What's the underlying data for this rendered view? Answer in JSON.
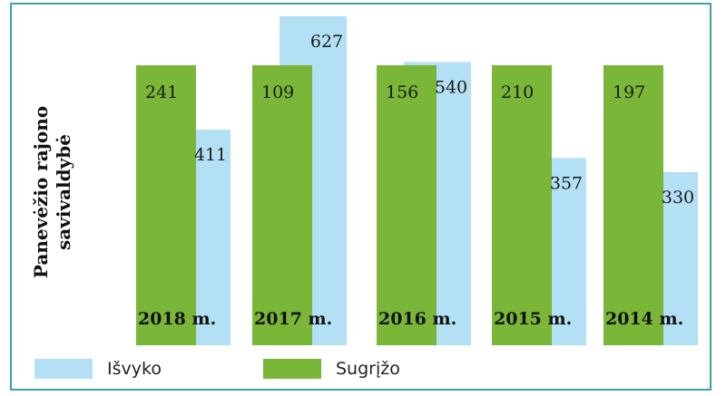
{
  "chart_data": {
    "type": "bar",
    "ylabel": "Panevėžio rajono savivaldybė",
    "ylabel_lines": [
      "Panevėžio rajono",
      "savivaldybė"
    ],
    "categories": [
      "2018 m.",
      "2017 m.",
      "2016 m.",
      "2015 m.",
      "2014 m."
    ],
    "series": [
      {
        "name": "Išvyko",
        "color": "#b3e0f4",
        "values": [
          411,
          627,
          540,
          357,
          330
        ]
      },
      {
        "name": "Sugrįžo",
        "color": "#7ab638",
        "values": [
          241,
          109,
          156,
          210,
          197
        ]
      }
    ],
    "legend_position": "bottom-left",
    "grid": false
  }
}
